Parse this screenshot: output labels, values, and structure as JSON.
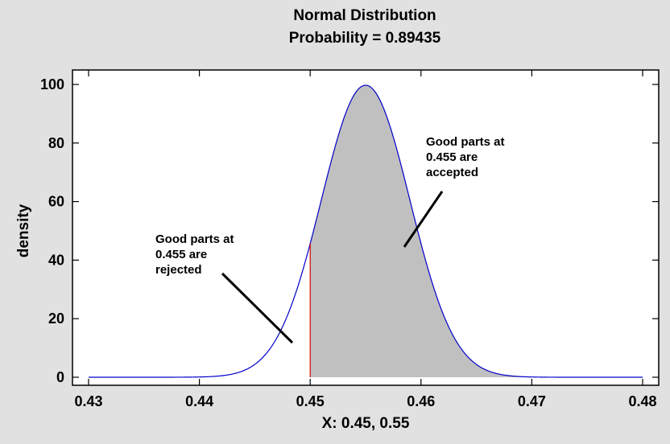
{
  "chart_data": {
    "type": "area",
    "title": "Normal Distribution",
    "subtitle": "Probability = 0.89435",
    "xlabel": "X: 0.45, 0.55",
    "ylabel": "density",
    "xlim": [
      0.43,
      0.48
    ],
    "ylim": [
      0,
      100
    ],
    "x_ticks": [
      "0.43",
      "0.44",
      "0.45",
      "0.46",
      "0.47",
      "0.48"
    ],
    "y_ticks": [
      "0",
      "20",
      "40",
      "60",
      "80",
      "100"
    ],
    "distribution": {
      "mean": 0.455,
      "sd": 0.004
    },
    "shaded_region": {
      "from": 0.45,
      "to": 0.55,
      "probability": 0.89435
    },
    "cutoff_x": 0.45,
    "grid": false,
    "annotations": [
      {
        "lines": [
          "Good parts at",
          "0.455 are",
          "rejected"
        ]
      },
      {
        "lines": [
          "Good parts at",
          "0.455 are",
          "accepted"
        ]
      }
    ],
    "colors": {
      "curve": "#0000c8",
      "fill": "#c0c0c0",
      "cutoff": "#d40000",
      "background": "#e1e1e1",
      "plot_area": "#ffffff"
    }
  }
}
